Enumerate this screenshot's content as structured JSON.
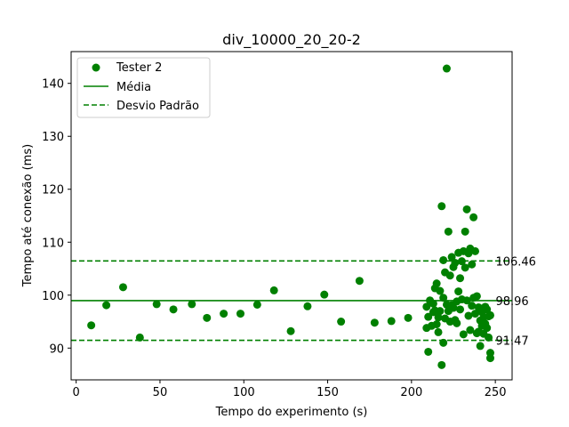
{
  "chart_data": {
    "type": "scatter",
    "title": "div_10000_20_20-2",
    "xlabel": "Tempo do experimento (s)",
    "ylabel": "Tempo até conexão (ms)",
    "xlim": [
      -3,
      260
    ],
    "ylim": [
      84,
      146
    ],
    "xticks": [
      0,
      50,
      100,
      150,
      200,
      250
    ],
    "yticks": [
      90,
      100,
      110,
      120,
      130,
      140
    ],
    "grid": false,
    "legend_position": "top-left",
    "colors": {
      "series": "#008000"
    },
    "legend": [
      {
        "label": "Tester 2",
        "kind": "marker"
      },
      {
        "label": "Média",
        "kind": "solid"
      },
      {
        "label": "Desvio Padrão",
        "kind": "dashed"
      }
    ],
    "reference_lines": [
      {
        "name": "mean",
        "style": "solid",
        "y": 98.96,
        "label": "98.96"
      },
      {
        "name": "upper",
        "style": "dashed",
        "y": 106.46,
        "label": "106.46"
      },
      {
        "name": "lower",
        "style": "dashed",
        "y": 91.47,
        "label": "91.47"
      }
    ],
    "series": [
      {
        "name": "Tester 2",
        "points": [
          [
            9,
            94.3
          ],
          [
            18,
            98.1
          ],
          [
            28,
            101.5
          ],
          [
            38,
            92.0
          ],
          [
            48,
            98.3
          ],
          [
            58,
            97.3
          ],
          [
            69,
            98.3
          ],
          [
            78,
            95.7
          ],
          [
            88,
            96.5
          ],
          [
            98,
            96.5
          ],
          [
            108,
            98.2
          ],
          [
            118,
            100.9
          ],
          [
            128,
            93.2
          ],
          [
            138,
            97.9
          ],
          [
            148,
            100.1
          ],
          [
            158,
            95.0
          ],
          [
            169,
            102.7
          ],
          [
            178,
            94.8
          ],
          [
            188,
            95.1
          ],
          [
            198,
            95.7
          ],
          [
            209,
            93.8
          ],
          [
            209,
            97.8
          ],
          [
            210,
            89.3
          ],
          [
            210,
            95.9
          ],
          [
            211,
            99.0
          ],
          [
            212,
            94.2
          ],
          [
            213,
            96.8
          ],
          [
            213,
            98.4
          ],
          [
            214,
            101.3
          ],
          [
            214,
            97.1
          ],
          [
            215,
            102.2
          ],
          [
            215,
            94.5
          ],
          [
            216,
            95.8
          ],
          [
            216,
            93.0
          ],
          [
            217,
            100.8
          ],
          [
            217,
            97.0
          ],
          [
            218,
            116.8
          ],
          [
            218,
            86.8
          ],
          [
            219,
            106.6
          ],
          [
            219,
            99.5
          ],
          [
            219,
            91.0
          ],
          [
            220,
            104.3
          ],
          [
            220,
            95.6
          ],
          [
            221,
            142.8
          ],
          [
            221,
            98.2
          ],
          [
            222,
            112.0
          ],
          [
            222,
            97.0
          ],
          [
            223,
            103.7
          ],
          [
            223,
            95.0
          ],
          [
            224,
            107.2
          ],
          [
            224,
            98.1
          ],
          [
            225,
            105.3
          ],
          [
            225,
            97.6
          ],
          [
            226,
            106.1
          ],
          [
            226,
            95.3
          ],
          [
            227,
            98.8
          ],
          [
            227,
            94.7
          ],
          [
            228,
            108.0
          ],
          [
            228,
            100.7
          ],
          [
            229,
            103.2
          ],
          [
            229,
            97.3
          ],
          [
            230,
            106.4
          ],
          [
            230,
            99.2
          ],
          [
            231,
            108.3
          ],
          [
            231,
            92.6
          ],
          [
            232,
            112.0
          ],
          [
            232,
            105.2
          ],
          [
            233,
            116.2
          ],
          [
            233,
            99.0
          ],
          [
            234,
            107.9
          ],
          [
            234,
            96.1
          ],
          [
            235,
            108.8
          ],
          [
            235,
            93.4
          ],
          [
            236,
            105.8
          ],
          [
            236,
            98.0
          ],
          [
            237,
            114.7
          ],
          [
            237,
            99.5
          ],
          [
            238,
            108.3
          ],
          [
            238,
            96.5
          ],
          [
            239,
            99.8
          ],
          [
            239,
            92.8
          ],
          [
            240,
            97.7
          ],
          [
            240,
            93.1
          ],
          [
            241,
            95.2
          ],
          [
            241,
            90.4
          ],
          [
            242,
            96.8
          ],
          [
            242,
            94.2
          ],
          [
            243,
            92.7
          ],
          [
            243,
            95.8
          ],
          [
            244,
            97.8
          ],
          [
            244,
            94.6
          ],
          [
            245,
            97.3
          ],
          [
            245,
            93.8
          ],
          [
            246,
            92.0
          ],
          [
            246,
            96.0
          ],
          [
            247,
            89.1
          ],
          [
            247,
            88.1
          ],
          [
            247,
            96.2
          ]
        ]
      }
    ]
  }
}
